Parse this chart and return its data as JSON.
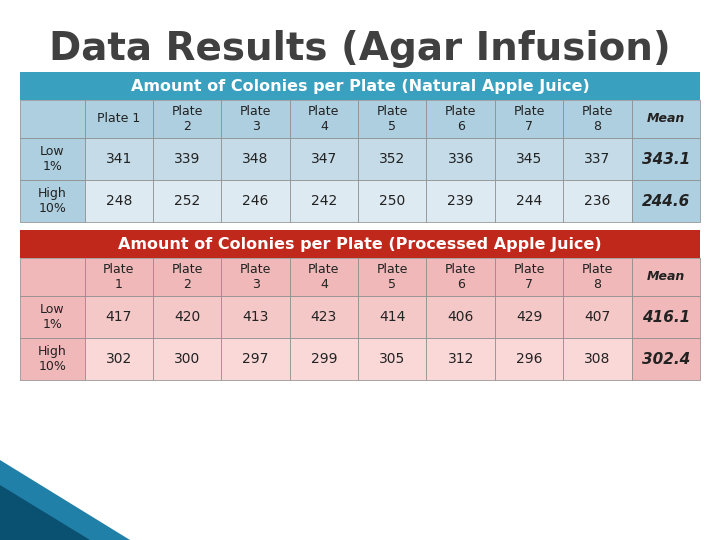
{
  "title": "Data Results (Agar Infusion)",
  "title_color": "#404040",
  "background_color": "#ffffff",
  "table1_header": "Amount of Colonies per Plate (Natural Apple Juice)",
  "table1_header_bg": "#3AA0BF",
  "table1_header_color": "#ffffff",
  "table1_col_header_bg": "#AECFE0",
  "table1_row_bg_even": "#C5DCE8",
  "table1_row_bg_odd": "#DDEAF2",
  "table2_header": "Amount of Colonies per Plate (Processed Apple Juice)",
  "table2_header_bg": "#C0281C",
  "table2_header_color": "#ffffff",
  "table2_col_header_bg": "#F0B8B8",
  "table2_row_bg_even": "#F5C8C8",
  "table2_row_bg_odd": "#FAD8D8",
  "col_headers": [
    "Plate 1",
    "Plate\n2",
    "Plate\n3",
    "Plate\n4",
    "Plate\n5",
    "Plate\n6",
    "Plate\n7",
    "Plate\n8",
    "Mean"
  ],
  "col_headers2": [
    "Plate\n1",
    "Plate\n2",
    "Plate\n3",
    "Plate\n4",
    "Plate\n5",
    "Plate\n6",
    "Plate\n7",
    "Plate\n8",
    "Mean"
  ],
  "row_labels": [
    "Low\n1%",
    "High\n10%"
  ],
  "table1_data": [
    [
      341,
      339,
      348,
      347,
      352,
      336,
      345,
      337,
      "343.1"
    ],
    [
      248,
      252,
      246,
      242,
      250,
      239,
      244,
      236,
      "244.6"
    ]
  ],
  "table2_data": [
    [
      417,
      420,
      413,
      423,
      414,
      406,
      429,
      407,
      "416.1"
    ],
    [
      302,
      300,
      297,
      299,
      305,
      312,
      296,
      308,
      "302.4"
    ]
  ],
  "cell_text_color": "#222222",
  "grid_color": "#888888",
  "stripe1_color": "#2080A8",
  "stripe2_color": "#0A5070",
  "title_fontsize": 28,
  "header_fontsize": 11.5,
  "col_header_fontsize": 9,
  "data_fontsize": 10,
  "mean_fontsize": 11
}
